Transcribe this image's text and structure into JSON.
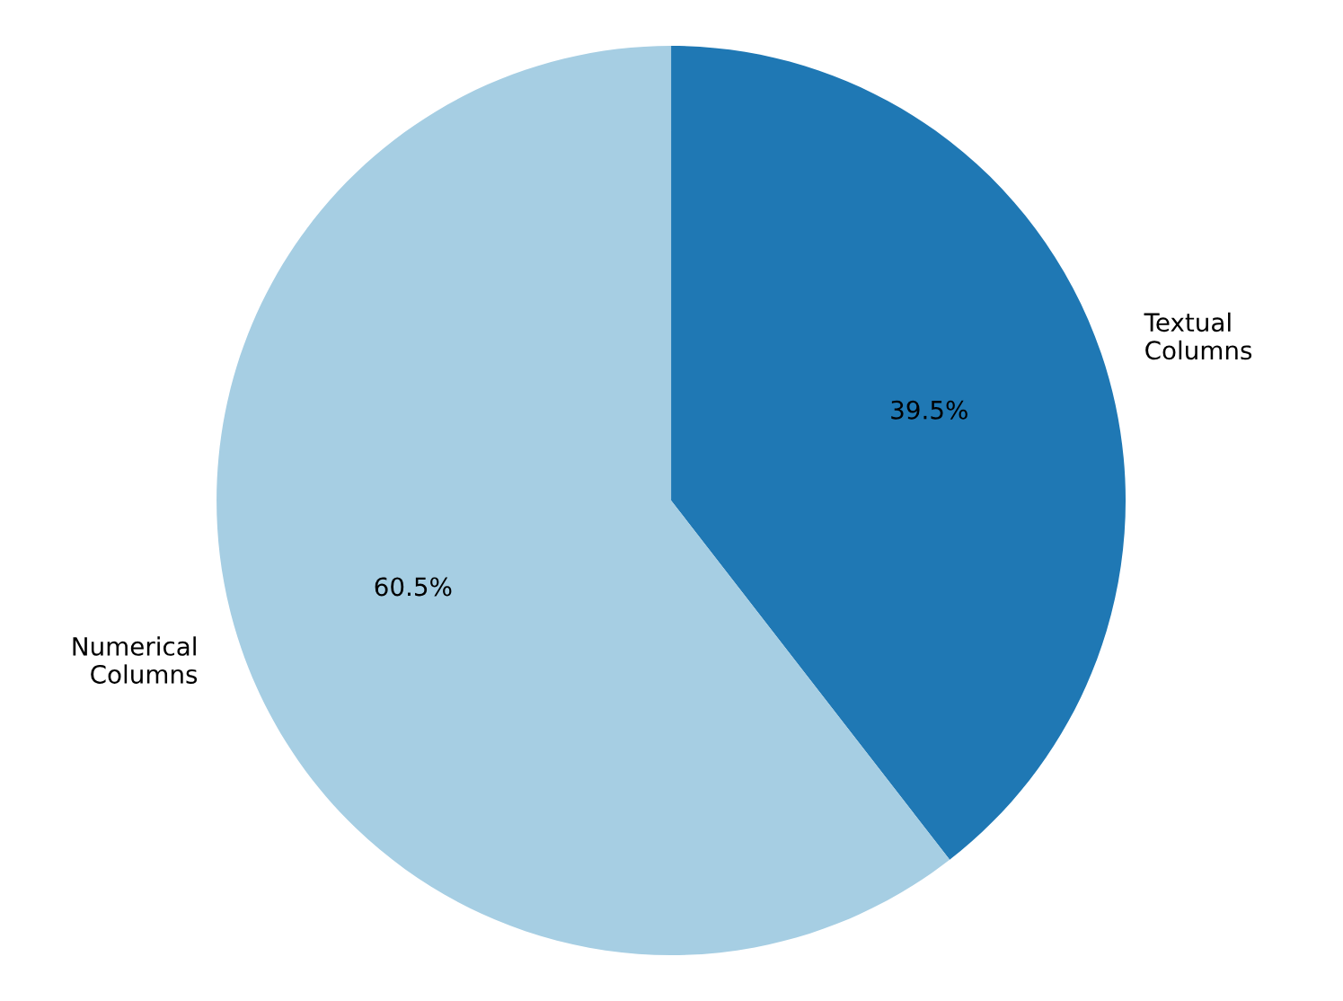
{
  "chart_data": {
    "type": "pie",
    "categories": [
      "Textual\nColumns",
      "Numerical\nColumns"
    ],
    "values": [
      39.5,
      60.5
    ],
    "colors": [
      "#1f78b4",
      "#a6cee3"
    ],
    "value_labels": [
      "39.5%",
      "60.5%"
    ]
  }
}
